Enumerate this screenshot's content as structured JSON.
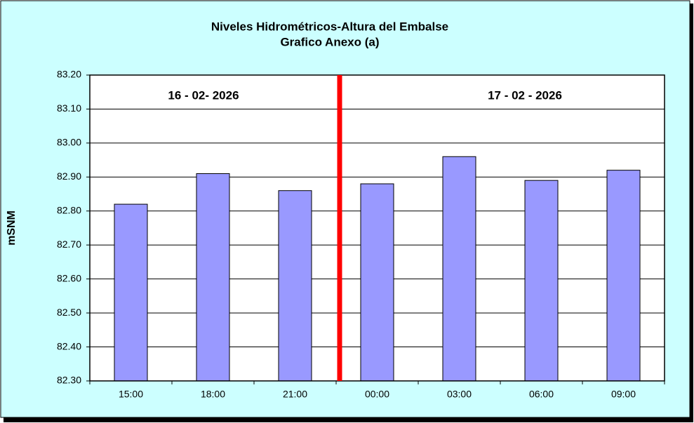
{
  "chart_data": {
    "type": "bar",
    "title": "Niveles Hidrométricos-Altura del Embalse",
    "subtitle": "Grafico Anexo (a)",
    "y_label": "mSNM",
    "annotations": [
      "16 - 02- 2026",
      "17 - 02 - 2026"
    ],
    "categories": [
      "15:00",
      "18:00",
      "21:00",
      "00:00",
      "03:00",
      "06:00",
      "09:00"
    ],
    "values": [
      82.82,
      82.91,
      82.86,
      82.88,
      82.96,
      82.89,
      82.92
    ],
    "color": "#9999ff",
    "ylim": [
      82.3,
      83.2
    ],
    "yticks": [
      {
        "value": 82.3,
        "label": "82.30"
      },
      {
        "value": 82.4,
        "label": "82.40"
      },
      {
        "value": 82.5,
        "label": "82.50"
      },
      {
        "value": 82.6,
        "label": "82.60"
      },
      {
        "value": 82.7,
        "label": "82.70"
      },
      {
        "value": 82.8,
        "label": "82.80"
      },
      {
        "value": 82.9,
        "label": "82.90"
      },
      {
        "value": 83.0,
        "label": "83.00"
      },
      {
        "value": 83.1,
        "label": "83.10"
      },
      {
        "value": 83.2,
        "label": "83.20"
      }
    ],
    "grid": true
  }
}
